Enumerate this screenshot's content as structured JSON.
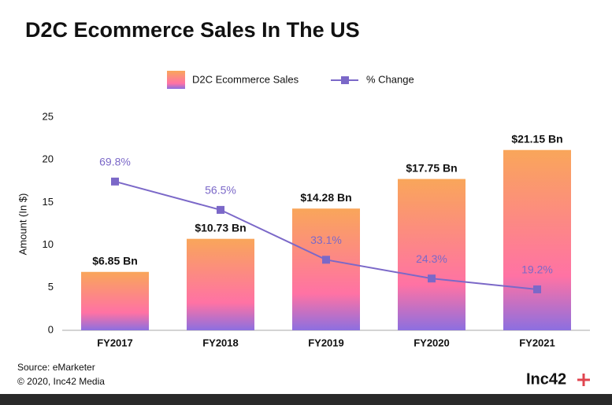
{
  "chart_data": {
    "type": "bar_line",
    "title": "D2C Ecommerce Sales In The US",
    "ylabel": "Amount (In $)",
    "categories": [
      "FY2017",
      "FY2018",
      "FY2019",
      "FY2020",
      "FY2021"
    ],
    "series": [
      {
        "name": "D2C Ecommerce Sales",
        "type": "bar",
        "colors": [
          "#f9a65a",
          "#ff72a4",
          "#8c6fe0"
        ],
        "values": [
          6.85,
          10.73,
          14.28,
          17.75,
          21.15
        ],
        "value_labels": [
          "$6.85 Bn",
          "$10.73 Bn",
          "$14.28 Bn",
          "$17.75 Bn",
          "$21.15 Bn"
        ]
      },
      {
        "name": "% Change",
        "type": "line",
        "axis": "y2",
        "color": "#7b68c8",
        "values": [
          69.8,
          56.5,
          33.1,
          24.3,
          19.2
        ],
        "value_labels": [
          "69.8%",
          "56.5%",
          "33.1%",
          "24.3%",
          "19.2%"
        ]
      }
    ],
    "ylim": [
      0,
      25
    ],
    "yticks": [
      0,
      5,
      10,
      15,
      20,
      25
    ],
    "y2lim": [
      0,
      100
    ],
    "source": "Source: eMarketer",
    "copyright": "© 2020, Inc42 Media",
    "brand": "Inc42"
  }
}
